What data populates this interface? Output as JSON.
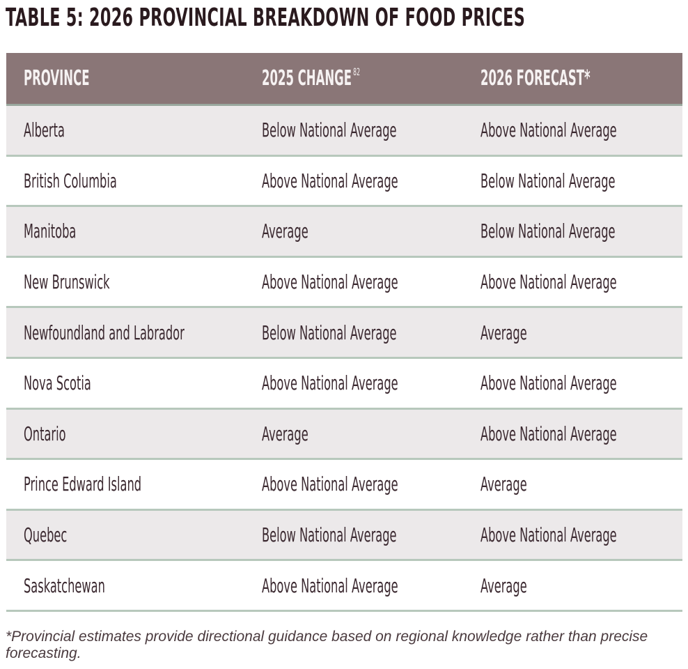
{
  "title": "TABLE 5: 2026 PROVINCIAL BREAKDOWN OF FOOD PRICES",
  "colors": {
    "header_bg": "#8a7677",
    "header_text": "#f6f2f2",
    "row_shade": "#ece9ea",
    "row_plain": "#ffffff",
    "divider": "#b7c8bc",
    "text": "#3b2930"
  },
  "table": {
    "headers": {
      "province": "PROVINCE",
      "change_2025": "2025 CHANGE",
      "change_2025_footnote_ref": "82",
      "forecast_2026": "2026 FORECAST*"
    },
    "rows": [
      {
        "province": "Alberta",
        "change_2025": "Below National Average",
        "forecast_2026": "Above National Average"
      },
      {
        "province": "British Columbia",
        "change_2025": "Above National Average",
        "forecast_2026": "Below National Average"
      },
      {
        "province": "Manitoba",
        "change_2025": "Average",
        "forecast_2026": "Below National Average"
      },
      {
        "province": "New Brunswick",
        "change_2025": "Above National Average",
        "forecast_2026": "Above National Average"
      },
      {
        "province": "Newfoundland and Labrador",
        "change_2025": "Below National Average",
        "forecast_2026": "Average"
      },
      {
        "province": "Nova Scotia",
        "change_2025": "Above National Average",
        "forecast_2026": "Above National Average"
      },
      {
        "province": "Ontario",
        "change_2025": "Average",
        "forecast_2026": "Above National Average"
      },
      {
        "province": "Prince Edward Island",
        "change_2025": "Above National Average",
        "forecast_2026": "Average"
      },
      {
        "province": "Quebec",
        "change_2025": "Below National Average",
        "forecast_2026": "Above National Average"
      },
      {
        "province": "Saskatchewan",
        "change_2025": "Above National Average",
        "forecast_2026": "Average"
      }
    ]
  },
  "footnote": "*Provincial estimates provide directional guidance based on regional knowledge rather than precise forecasting."
}
